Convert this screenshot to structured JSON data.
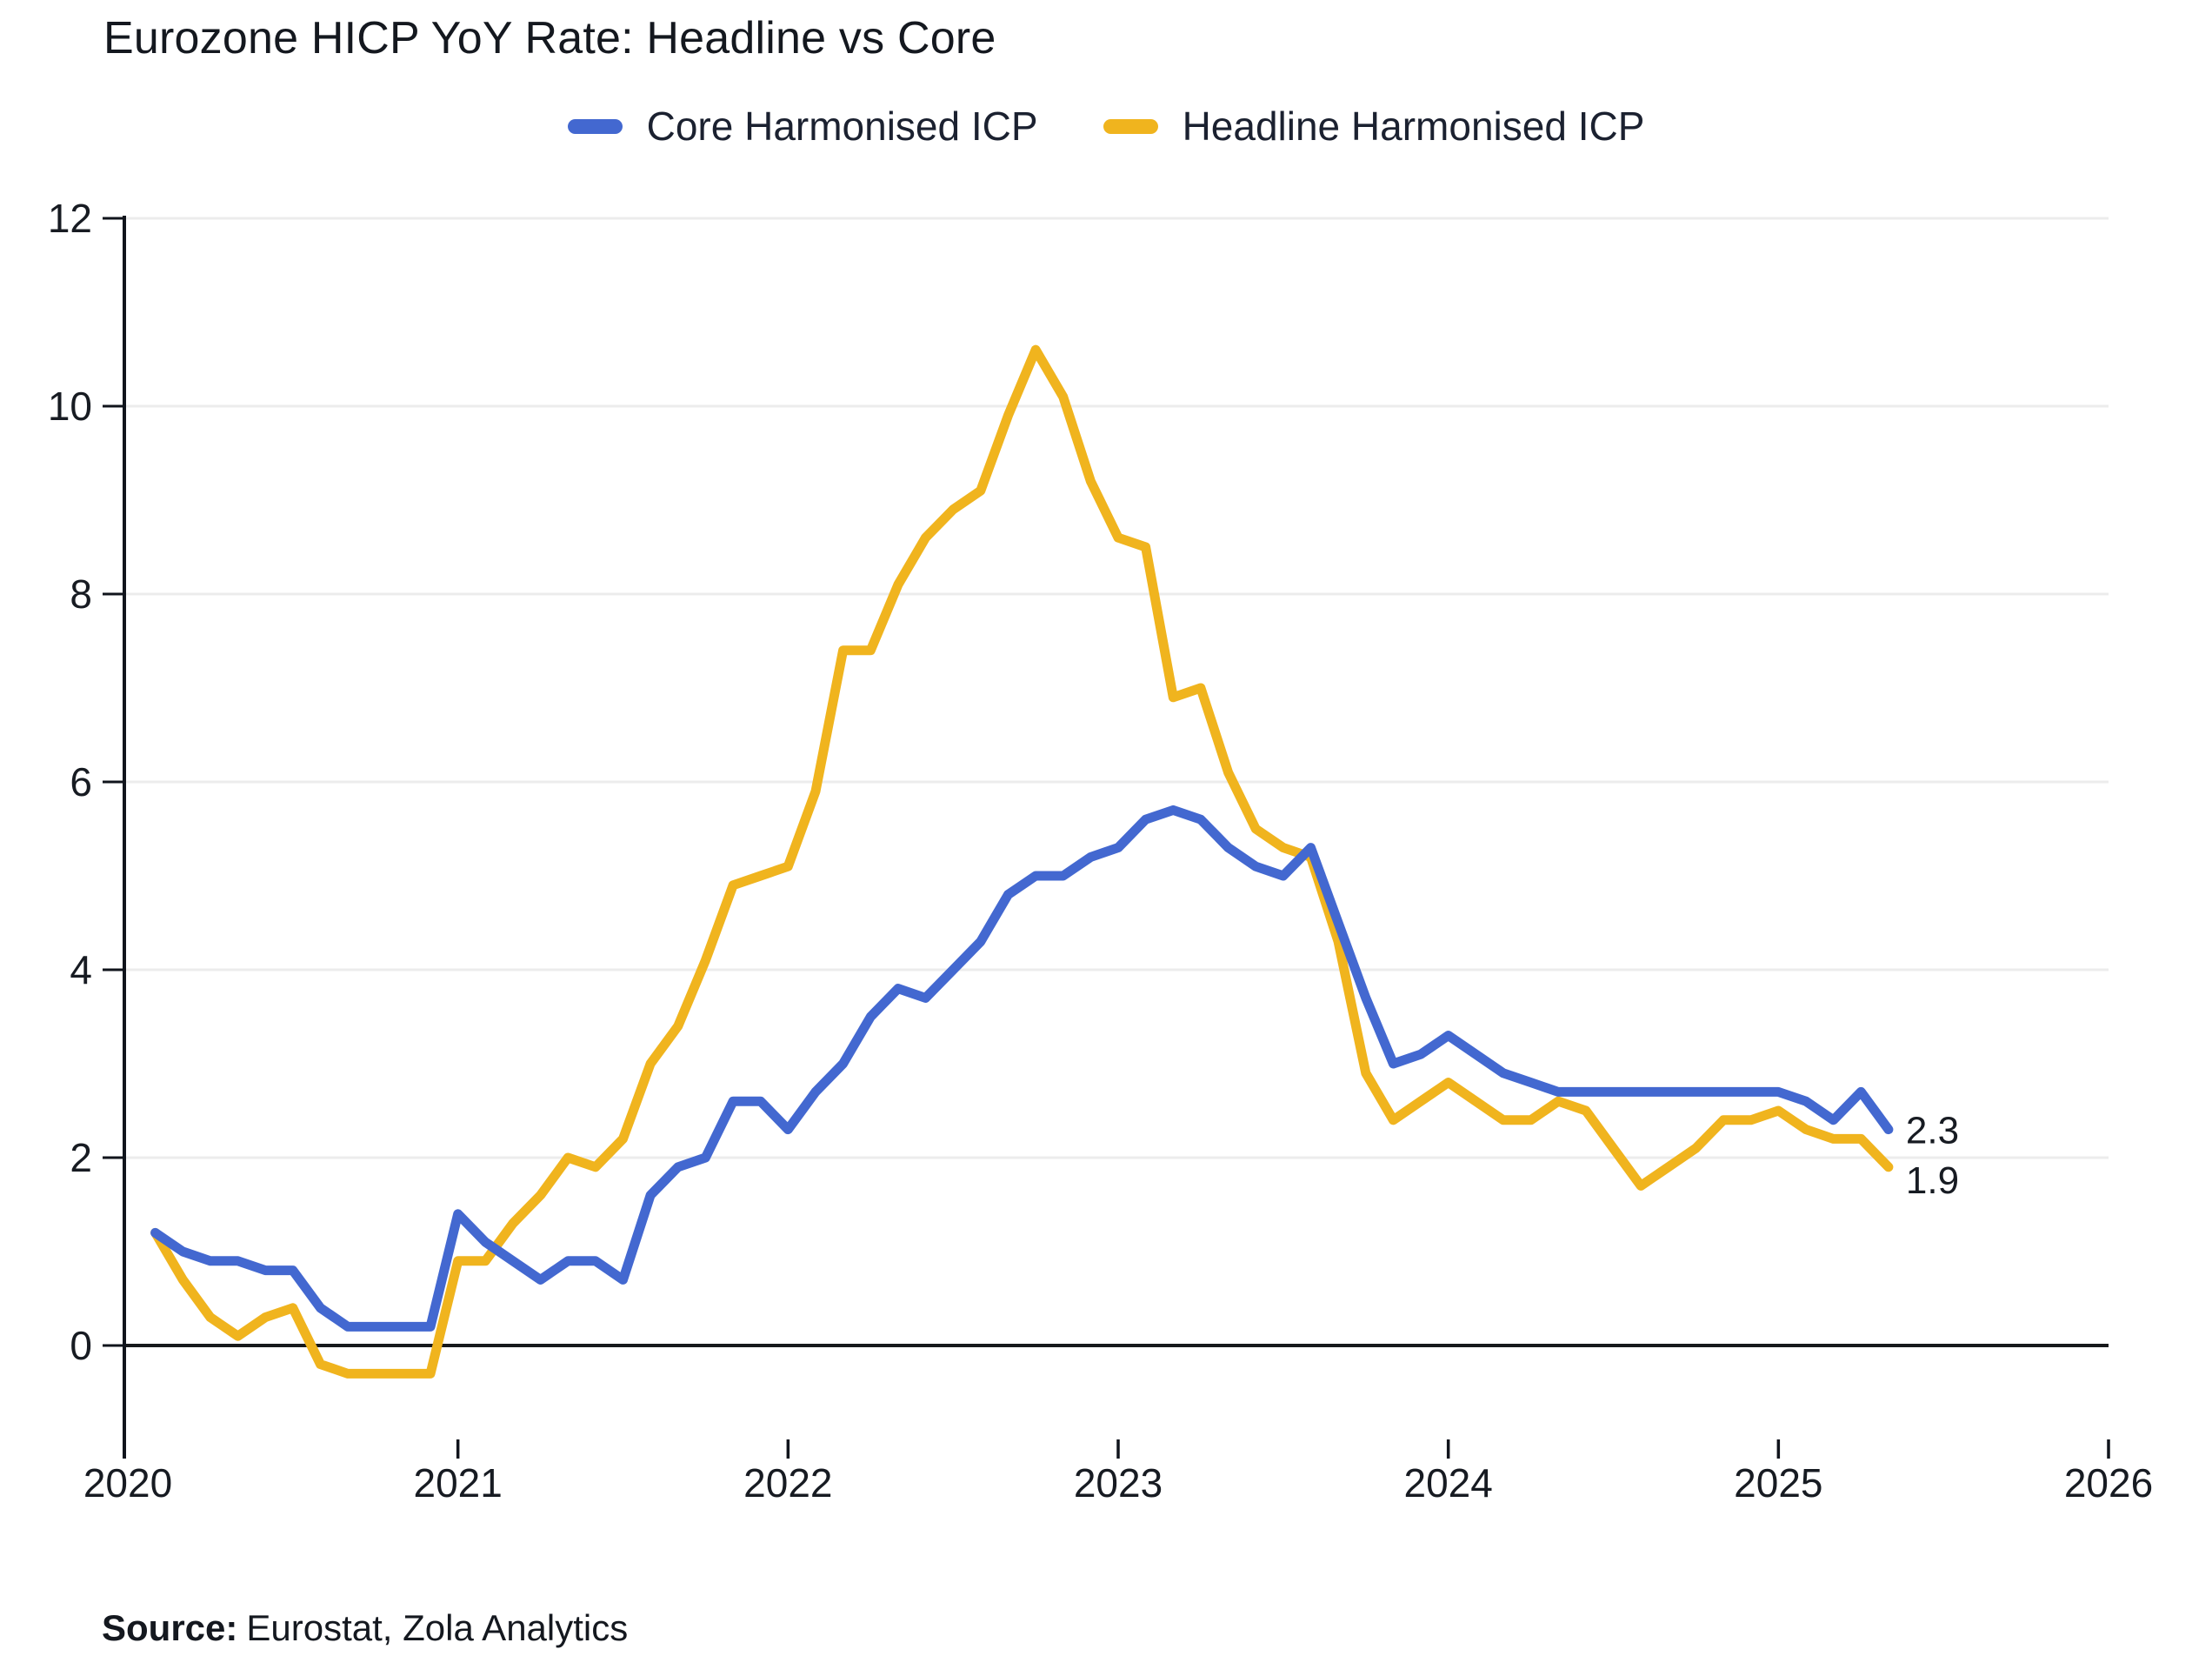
{
  "page": {
    "source_label": "Source:",
    "source_text": "Eurostat, Zola Analytics"
  },
  "legend": {
    "position": "top-center"
  },
  "chart_data": {
    "type": "line",
    "title": "Eurozone HICP YoY Rate: Headline vs Core",
    "x_start": "2020-02",
    "x_frequency": "monthly",
    "x_tick_labels": [
      "2020",
      "2021",
      "2022",
      "2023",
      "2024",
      "2025",
      "2026"
    ],
    "y_ticks": [
      0,
      2,
      4,
      6,
      8,
      10,
      12
    ],
    "ylim": [
      -1.2,
      12
    ],
    "xlim_years": [
      2020,
      2026
    ],
    "grid": "horizontal",
    "zero_line": true,
    "legend_position": "top-center",
    "colors": {
      "grid": "#ececec",
      "zero_line": "#17191c",
      "axis": "#10141c",
      "tick_text": "#171b22"
    },
    "series": [
      {
        "name": "Core Harmonised ICP",
        "color": "#4368d0",
        "end_label": "2.3",
        "values": [
          1.2,
          1.0,
          0.9,
          0.9,
          0.8,
          0.8,
          0.4,
          0.2,
          0.2,
          0.2,
          0.2,
          1.4,
          1.1,
          0.9,
          0.7,
          0.9,
          0.9,
          0.7,
          1.6,
          1.9,
          2.0,
          2.6,
          2.6,
          2.3,
          2.7,
          3.0,
          3.5,
          3.8,
          3.7,
          4.0,
          4.3,
          4.8,
          5.0,
          5.0,
          5.2,
          5.3,
          5.6,
          5.7,
          5.6,
          5.3,
          5.1,
          5.0,
          5.3,
          4.5,
          3.7,
          3.0,
          3.1,
          3.3,
          3.1,
          2.9,
          2.8,
          2.7,
          2.7,
          2.7,
          2.7,
          2.7,
          2.7,
          2.7,
          2.7,
          2.7,
          2.6,
          2.4,
          2.7,
          2.3
        ]
      },
      {
        "name": "Headline Harmonised ICP",
        "color": "#f0b41e",
        "end_label": "1.9",
        "values": [
          1.2,
          0.7,
          0.3,
          0.1,
          0.3,
          0.4,
          -0.2,
          -0.3,
          -0.3,
          -0.3,
          -0.3,
          0.9,
          0.9,
          1.3,
          1.6,
          2.0,
          1.9,
          2.2,
          3.0,
          3.4,
          4.1,
          4.9,
          5.0,
          5.1,
          5.9,
          7.4,
          7.4,
          8.1,
          8.6,
          8.9,
          9.1,
          9.9,
          10.6,
          10.1,
          9.2,
          8.6,
          8.5,
          6.9,
          7.0,
          6.1,
          5.5,
          5.3,
          5.2,
          4.3,
          2.9,
          2.4,
          2.6,
          2.8,
          2.6,
          2.4,
          2.4,
          2.6,
          2.5,
          2.1,
          1.7,
          1.9,
          2.1,
          2.4,
          2.4,
          2.5,
          2.3,
          2.2,
          2.2,
          1.9
        ]
      }
    ]
  }
}
